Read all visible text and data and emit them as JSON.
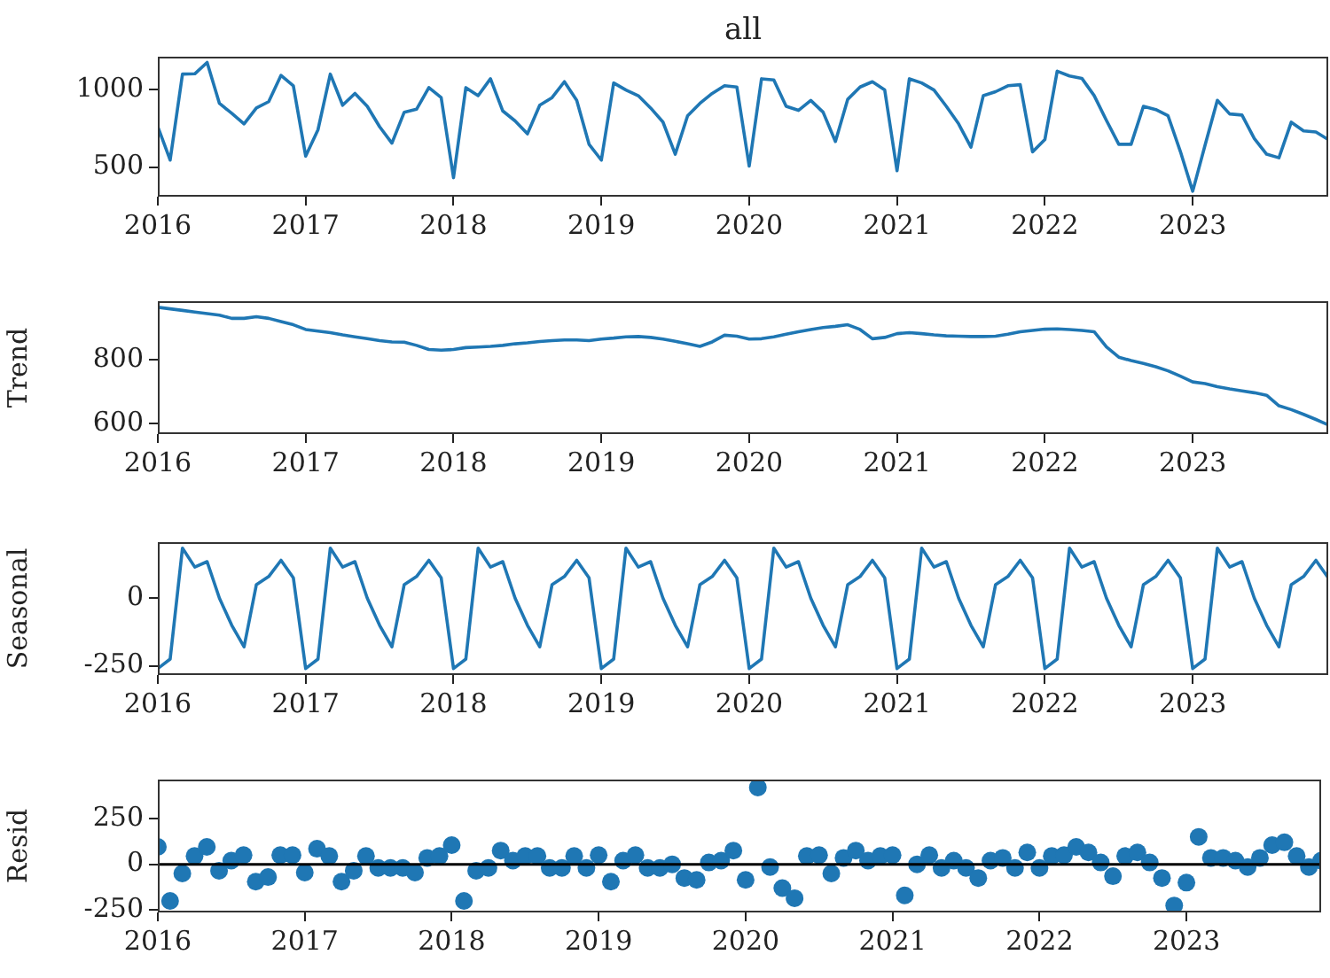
{
  "chart_data": [
    {
      "type": "line",
      "title": "all",
      "color": "#1f77b4",
      "marker": "none",
      "grid": false,
      "x": [
        "2016-01",
        "2016-02",
        "2016-03",
        "2016-04",
        "2016-05",
        "2016-06",
        "2016-07",
        "2016-08",
        "2016-09",
        "2016-10",
        "2016-11",
        "2016-12",
        "2017-01",
        "2017-02",
        "2017-03",
        "2017-04",
        "2017-05",
        "2017-06",
        "2017-07",
        "2017-08",
        "2017-09",
        "2017-10",
        "2017-11",
        "2017-12",
        "2018-01",
        "2018-02",
        "2018-03",
        "2018-04",
        "2018-05",
        "2018-06",
        "2018-07",
        "2018-08",
        "2018-09",
        "2018-10",
        "2018-11",
        "2018-12",
        "2019-01",
        "2019-02",
        "2019-03",
        "2019-04",
        "2019-05",
        "2019-06",
        "2019-07",
        "2019-08",
        "2019-09",
        "2019-10",
        "2019-11",
        "2019-12",
        "2020-01",
        "2020-02",
        "2020-03",
        "2020-04",
        "2020-05",
        "2020-06",
        "2020-07",
        "2020-08",
        "2020-09",
        "2020-10",
        "2020-11",
        "2020-12",
        "2021-01",
        "2021-02",
        "2021-03",
        "2021-04",
        "2021-05",
        "2021-06",
        "2021-07",
        "2021-08",
        "2021-09",
        "2021-10",
        "2021-11",
        "2021-12",
        "2022-01",
        "2022-02",
        "2022-03",
        "2022-04",
        "2022-05",
        "2022-06",
        "2022-07",
        "2022-08",
        "2022-09",
        "2022-10",
        "2022-11",
        "2022-12",
        "2023-01",
        "2023-02",
        "2023-03",
        "2023-04",
        "2023-05",
        "2023-06",
        "2023-07",
        "2023-08",
        "2023-09",
        "2023-10",
        "2023-11",
        "2023-12"
      ],
      "values": [
        760,
        545,
        1098,
        1100,
        1173,
        910,
        846,
        778,
        880,
        921,
        1090,
        1023,
        571,
        740,
        1098,
        898,
        974,
        891,
        760,
        654,
        853,
        872,
        1011,
        947,
        432,
        1011,
        959,
        1068,
        861,
        797,
        714,
        898,
        947,
        1049,
        929,
        647,
        545,
        1041,
        996,
        959,
        880,
        790,
        583,
        830,
        910,
        974,
        1023,
        1015,
        507,
        1068,
        1060,
        891,
        865,
        929,
        853,
        665,
        936,
        1015,
        1049,
        996,
        477,
        1068,
        1041,
        996,
        891,
        778,
        628,
        959,
        985,
        1023,
        1030,
        598,
        677,
        1117,
        1086,
        1071,
        960,
        800,
        647,
        647,
        891,
        870,
        830,
        600,
        345,
        640,
        929,
        842,
        835,
        684,
        583,
        560,
        789,
        733,
        726,
        677
      ],
      "xlim": [
        "2016-01",
        "2023-12"
      ],
      "xticks": [
        "2016",
        "2017",
        "2018",
        "2019",
        "2020",
        "2021",
        "2022",
        "2023"
      ],
      "ylim": [
        310,
        1210
      ],
      "yticks": [
        500,
        1000
      ]
    },
    {
      "type": "line",
      "ylabel": "Trend",
      "color": "#1f77b4",
      "marker": "none",
      "grid": false,
      "x": [
        "2016-01",
        "2016-02",
        "2016-03",
        "2016-04",
        "2016-05",
        "2016-06",
        "2016-07",
        "2016-08",
        "2016-09",
        "2016-10",
        "2016-11",
        "2016-12",
        "2017-01",
        "2017-02",
        "2017-03",
        "2017-04",
        "2017-05",
        "2017-06",
        "2017-07",
        "2017-08",
        "2017-09",
        "2017-10",
        "2017-11",
        "2017-12",
        "2018-01",
        "2018-02",
        "2018-03",
        "2018-04",
        "2018-05",
        "2018-06",
        "2018-07",
        "2018-08",
        "2018-09",
        "2018-10",
        "2018-11",
        "2018-12",
        "2019-01",
        "2019-02",
        "2019-03",
        "2019-04",
        "2019-05",
        "2019-06",
        "2019-07",
        "2019-08",
        "2019-09",
        "2019-10",
        "2019-11",
        "2019-12",
        "2020-01",
        "2020-02",
        "2020-03",
        "2020-04",
        "2020-05",
        "2020-06",
        "2020-07",
        "2020-08",
        "2020-09",
        "2020-10",
        "2020-11",
        "2020-12",
        "2021-01",
        "2021-02",
        "2021-03",
        "2021-04",
        "2021-05",
        "2021-06",
        "2021-07",
        "2021-08",
        "2021-09",
        "2021-10",
        "2021-11",
        "2021-12",
        "2022-01",
        "2022-02",
        "2022-03",
        "2022-04",
        "2022-05",
        "2022-06",
        "2022-07",
        "2022-08",
        "2022-09",
        "2022-10",
        "2022-11",
        "2022-12",
        "2023-01",
        "2023-02",
        "2023-03",
        "2023-04",
        "2023-05",
        "2023-06",
        "2023-07",
        "2023-08",
        "2023-09",
        "2023-10",
        "2023-11",
        "2023-12"
      ],
      "values": [
        965,
        960,
        955,
        950,
        945,
        940,
        930,
        930,
        935,
        930,
        920,
        910,
        895,
        890,
        885,
        878,
        872,
        866,
        860,
        856,
        855,
        845,
        832,
        830,
        832,
        838,
        840,
        842,
        845,
        850,
        853,
        857,
        860,
        862,
        862,
        860,
        865,
        868,
        872,
        873,
        870,
        865,
        858,
        850,
        842,
        856,
        877,
        874,
        865,
        866,
        872,
        880,
        888,
        895,
        901,
        905,
        910,
        895,
        866,
        870,
        882,
        885,
        882,
        878,
        875,
        874,
        873,
        873,
        874,
        880,
        888,
        892,
        896,
        897,
        895,
        892,
        888,
        840,
        808,
        797,
        788,
        778,
        765,
        748,
        730,
        725,
        715,
        708,
        702,
        696,
        688,
        655,
        643,
        628,
        612,
        595
      ],
      "xlim": [
        "2016-01",
        "2023-12"
      ],
      "xticks": [
        "2016",
        "2017",
        "2018",
        "2019",
        "2020",
        "2021",
        "2022",
        "2023"
      ],
      "ylim": [
        566,
        984
      ],
      "yticks": [
        600,
        800
      ]
    },
    {
      "type": "line",
      "ylabel": "Seasonal",
      "color": "#1f77b4",
      "marker": "none",
      "grid": false,
      "x": [
        "2016-01",
        "2016-02",
        "2016-03",
        "2016-04",
        "2016-05",
        "2016-06",
        "2016-07",
        "2016-08",
        "2016-09",
        "2016-10",
        "2016-11",
        "2016-12",
        "2017-01",
        "2017-02",
        "2017-03",
        "2017-04",
        "2017-05",
        "2017-06",
        "2017-07",
        "2017-08",
        "2017-09",
        "2017-10",
        "2017-11",
        "2017-12",
        "2018-01",
        "2018-02",
        "2018-03",
        "2018-04",
        "2018-05",
        "2018-06",
        "2018-07",
        "2018-08",
        "2018-09",
        "2018-10",
        "2018-11",
        "2018-12",
        "2019-01",
        "2019-02",
        "2019-03",
        "2019-04",
        "2019-05",
        "2019-06",
        "2019-07",
        "2019-08",
        "2019-09",
        "2019-10",
        "2019-11",
        "2019-12",
        "2020-01",
        "2020-02",
        "2020-03",
        "2020-04",
        "2020-05",
        "2020-06",
        "2020-07",
        "2020-08",
        "2020-09",
        "2020-10",
        "2020-11",
        "2020-12",
        "2021-01",
        "2021-02",
        "2021-03",
        "2021-04",
        "2021-05",
        "2021-06",
        "2021-07",
        "2021-08",
        "2021-09",
        "2021-10",
        "2021-11",
        "2021-12",
        "2022-01",
        "2022-02",
        "2022-03",
        "2022-04",
        "2022-05",
        "2022-06",
        "2022-07",
        "2022-08",
        "2022-09",
        "2022-10",
        "2022-11",
        "2022-12",
        "2023-01",
        "2023-02",
        "2023-03",
        "2023-04",
        "2023-05",
        "2023-06",
        "2023-07",
        "2023-08",
        "2023-09",
        "2023-10",
        "2023-11",
        "2023-12"
      ],
      "values": [
        -260,
        -225,
        185,
        115,
        135,
        0,
        -100,
        -180,
        50,
        80,
        140,
        75,
        -260,
        -225,
        185,
        115,
        135,
        0,
        -100,
        -180,
        50,
        80,
        140,
        75,
        -260,
        -225,
        185,
        115,
        135,
        0,
        -100,
        -180,
        50,
        80,
        140,
        75,
        -260,
        -225,
        185,
        115,
        135,
        0,
        -100,
        -180,
        50,
        80,
        140,
        75,
        -260,
        -225,
        185,
        115,
        135,
        0,
        -100,
        -180,
        50,
        80,
        140,
        75,
        -260,
        -225,
        185,
        115,
        135,
        0,
        -100,
        -180,
        50,
        80,
        140,
        75,
        -260,
        -225,
        185,
        115,
        135,
        0,
        -100,
        -180,
        50,
        80,
        140,
        75,
        -260,
        -225,
        185,
        115,
        135,
        0,
        -100,
        -180,
        50,
        80,
        140,
        75
      ],
      "xlim": [
        "2016-01",
        "2023-12"
      ],
      "xticks": [
        "2016",
        "2017",
        "2018",
        "2019",
        "2020",
        "2021",
        "2022",
        "2023"
      ],
      "ylim": [
        -284,
        207
      ],
      "yticks": [
        -250,
        0
      ]
    },
    {
      "type": "scatter",
      "ylabel": "Resid",
      "color": "#1f77b4",
      "marker": "circle",
      "grid": false,
      "x": [
        "2016-01",
        "2016-02",
        "2016-03",
        "2016-04",
        "2016-05",
        "2016-06",
        "2016-07",
        "2016-08",
        "2016-09",
        "2016-10",
        "2016-11",
        "2016-12",
        "2017-01",
        "2017-02",
        "2017-03",
        "2017-04",
        "2017-05",
        "2017-06",
        "2017-07",
        "2017-08",
        "2017-09",
        "2017-10",
        "2017-11",
        "2017-12",
        "2018-01",
        "2018-02",
        "2018-03",
        "2018-04",
        "2018-05",
        "2018-06",
        "2018-07",
        "2018-08",
        "2018-09",
        "2018-10",
        "2018-11",
        "2018-12",
        "2019-01",
        "2019-02",
        "2019-03",
        "2019-04",
        "2019-05",
        "2019-06",
        "2019-07",
        "2019-08",
        "2019-09",
        "2019-10",
        "2019-11",
        "2019-12",
        "2020-01",
        "2020-02",
        "2020-03",
        "2020-04",
        "2020-05",
        "2020-06",
        "2020-07",
        "2020-08",
        "2020-09",
        "2020-10",
        "2020-11",
        "2020-12",
        "2021-01",
        "2021-02",
        "2021-03",
        "2021-04",
        "2021-05",
        "2021-06",
        "2021-07",
        "2021-08",
        "2021-09",
        "2021-10",
        "2021-11",
        "2021-12",
        "2022-01",
        "2022-02",
        "2022-03",
        "2022-04",
        "2022-05",
        "2022-06",
        "2022-07",
        "2022-08",
        "2022-09",
        "2022-10",
        "2022-11",
        "2022-12",
        "2023-01",
        "2023-02",
        "2023-03",
        "2023-04",
        "2023-05",
        "2023-06",
        "2023-07",
        "2023-08",
        "2023-09",
        "2023-10",
        "2023-11",
        "2023-12"
      ],
      "values": [
        95,
        -200,
        -50,
        45,
        95,
        -35,
        20,
        50,
        -95,
        -70,
        50,
        50,
        -45,
        85,
        45,
        -95,
        -35,
        45,
        -20,
        -20,
        -20,
        -45,
        35,
        45,
        105,
        -200,
        -35,
        -20,
        75,
        20,
        45,
        45,
        -20,
        -20,
        45,
        -20,
        50,
        -95,
        20,
        50,
        -20,
        -20,
        0,
        -75,
        -85,
        10,
        20,
        75,
        -85,
        420,
        -15,
        -130,
        -185,
        45,
        50,
        -50,
        35,
        75,
        20,
        45,
        50,
        -170,
        0,
        50,
        -20,
        20,
        -20,
        -75,
        20,
        35,
        -20,
        65,
        -20,
        45,
        50,
        95,
        65,
        10,
        -65,
        45,
        65,
        10,
        -75,
        -225,
        -100,
        150,
        35,
        35,
        20,
        -15,
        35,
        105,
        120,
        45,
        -15,
        20
      ],
      "xlim": [
        "2016-01",
        "2023-12"
      ],
      "xticks": [
        "2016",
        "2017",
        "2018",
        "2019",
        "2020",
        "2021",
        "2022",
        "2023"
      ],
      "ylim": [
        -263,
        463
      ],
      "yticks": [
        -250,
        0,
        250
      ],
      "ref_lines": [
        {
          "axis": "y",
          "value": 0,
          "color": "#000000"
        }
      ]
    }
  ]
}
